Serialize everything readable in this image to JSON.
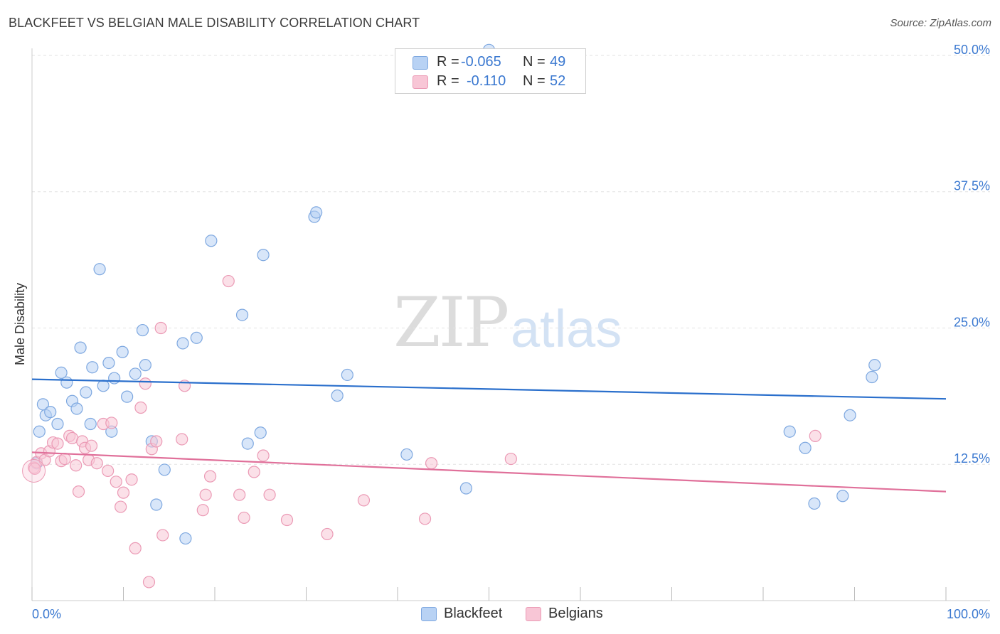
{
  "header": {
    "title": "BLACKFEET VS BELGIAN MALE DISABILITY CORRELATION CHART",
    "source": "Source: ZipAtlas.com"
  },
  "watermark": {
    "zip": "ZIP",
    "atlas": "atlas"
  },
  "legend": {
    "rows": [
      {
        "series": "Blackfeet",
        "r_label": "R =",
        "r_value": "-0.065",
        "n_label": "N =",
        "n_value": "49"
      },
      {
        "series": "Belgians",
        "r_label": "R =",
        "r_value": "-0.110",
        "n_label": "N =",
        "n_value": "52"
      }
    ]
  },
  "bottom_legend": [
    {
      "label": "Blackfeet"
    },
    {
      "label": "Belgians"
    }
  ],
  "colors": {
    "blackfeet_fill": "#b8d2f4",
    "blackfeet_stroke": "#7ea8e0",
    "blackfeet_line": "#2a6fcc",
    "belgians_fill": "#f8c6d6",
    "belgians_stroke": "#eb9ab5",
    "belgians_line": "#e0709a",
    "axis_label": "#3a78d0",
    "grid": "#e2e2e2"
  },
  "chart_data": {
    "type": "scatter",
    "title": "BLACKFEET VS BELGIAN MALE DISABILITY CORRELATION CHART",
    "xlabel": "",
    "ylabel": "Male Disability",
    "xlim": [
      0,
      100
    ],
    "ylim": [
      0,
      50
    ],
    "x_tick_labels": [
      "0.0%",
      "100.0%"
    ],
    "y_ticks": [
      12.5,
      25.0,
      37.5,
      50.0
    ],
    "y_tick_labels": [
      "12.5%",
      "25.0%",
      "37.5%",
      "50.0%"
    ],
    "grid": true,
    "series": [
      {
        "name": "Blackfeet",
        "r": -0.065,
        "n": 49,
        "trend": {
          "x": [
            0,
            100
          ],
          "y": [
            20.3,
            18.5
          ]
        },
        "points": [
          [
            0.5,
            12.6
          ],
          [
            0.8,
            15.5
          ],
          [
            1.2,
            18.0
          ],
          [
            1.5,
            17.0
          ],
          [
            2.0,
            17.3
          ],
          [
            2.8,
            16.2
          ],
          [
            3.2,
            20.9
          ],
          [
            3.8,
            20.0
          ],
          [
            4.4,
            18.3
          ],
          [
            4.9,
            17.6
          ],
          [
            5.3,
            23.2
          ],
          [
            5.9,
            19.1
          ],
          [
            6.4,
            16.2
          ],
          [
            6.6,
            21.4
          ],
          [
            7.4,
            30.4
          ],
          [
            7.8,
            19.7
          ],
          [
            8.4,
            21.8
          ],
          [
            8.7,
            15.5
          ],
          [
            9.0,
            20.4
          ],
          [
            9.9,
            22.8
          ],
          [
            10.4,
            18.7
          ],
          [
            11.3,
            20.8
          ],
          [
            12.1,
            24.8
          ],
          [
            12.4,
            21.6
          ],
          [
            13.1,
            14.6
          ],
          [
            13.6,
            8.8
          ],
          [
            14.5,
            12.0
          ],
          [
            16.5,
            23.6
          ],
          [
            16.8,
            5.7
          ],
          [
            18.0,
            24.1
          ],
          [
            19.6,
            33.0
          ],
          [
            23.0,
            26.2
          ],
          [
            23.6,
            14.4
          ],
          [
            25.0,
            15.4
          ],
          [
            25.3,
            31.7
          ],
          [
            30.9,
            35.2
          ],
          [
            31.1,
            35.6
          ],
          [
            33.4,
            18.8
          ],
          [
            34.5,
            20.7
          ],
          [
            41.0,
            13.4
          ],
          [
            47.5,
            10.3
          ],
          [
            50.0,
            50.5
          ],
          [
            82.9,
            15.5
          ],
          [
            84.6,
            14.0
          ],
          [
            85.6,
            8.9
          ],
          [
            88.7,
            9.6
          ],
          [
            89.5,
            17.0
          ],
          [
            91.9,
            20.5
          ],
          [
            92.2,
            21.6
          ]
        ]
      },
      {
        "name": "Belgians",
        "r": -0.11,
        "n": 52,
        "trend": {
          "x": [
            0,
            100
          ],
          "y": [
            13.6,
            10.0
          ]
        },
        "points": [
          [
            0.2,
            12.2
          ],
          [
            0.5,
            12.7
          ],
          [
            1.0,
            13.5
          ],
          [
            1.4,
            12.9
          ],
          [
            1.9,
            13.7
          ],
          [
            2.3,
            14.5
          ],
          [
            2.8,
            14.4
          ],
          [
            3.2,
            12.8
          ],
          [
            3.6,
            13.0
          ],
          [
            4.1,
            15.1
          ],
          [
            4.4,
            14.9
          ],
          [
            4.8,
            12.4
          ],
          [
            5.1,
            10.0
          ],
          [
            5.5,
            14.6
          ],
          [
            5.8,
            14.0
          ],
          [
            6.2,
            12.9
          ],
          [
            6.5,
            14.2
          ],
          [
            7.1,
            12.6
          ],
          [
            7.8,
            16.2
          ],
          [
            8.3,
            11.9
          ],
          [
            8.7,
            16.3
          ],
          [
            9.2,
            10.9
          ],
          [
            9.7,
            8.6
          ],
          [
            10.0,
            9.9
          ],
          [
            10.9,
            11.1
          ],
          [
            11.3,
            4.8
          ],
          [
            11.9,
            17.7
          ],
          [
            12.4,
            19.9
          ],
          [
            12.8,
            1.7
          ],
          [
            13.1,
            13.9
          ],
          [
            13.6,
            14.6
          ],
          [
            14.1,
            25.0
          ],
          [
            14.3,
            6.0
          ],
          [
            16.4,
            14.8
          ],
          [
            16.7,
            19.7
          ],
          [
            18.7,
            8.3
          ],
          [
            19.0,
            9.7
          ],
          [
            19.5,
            11.4
          ],
          [
            21.5,
            29.3
          ],
          [
            22.7,
            9.7
          ],
          [
            23.2,
            7.6
          ],
          [
            24.3,
            11.8
          ],
          [
            25.3,
            13.3
          ],
          [
            26.0,
            9.7
          ],
          [
            27.9,
            7.4
          ],
          [
            32.3,
            6.1
          ],
          [
            36.3,
            9.2
          ],
          [
            43.0,
            7.5
          ],
          [
            43.7,
            12.6
          ],
          [
            52.4,
            13.0
          ],
          [
            85.7,
            15.1
          ],
          [
            0.3,
            12.1
          ]
        ]
      }
    ]
  }
}
